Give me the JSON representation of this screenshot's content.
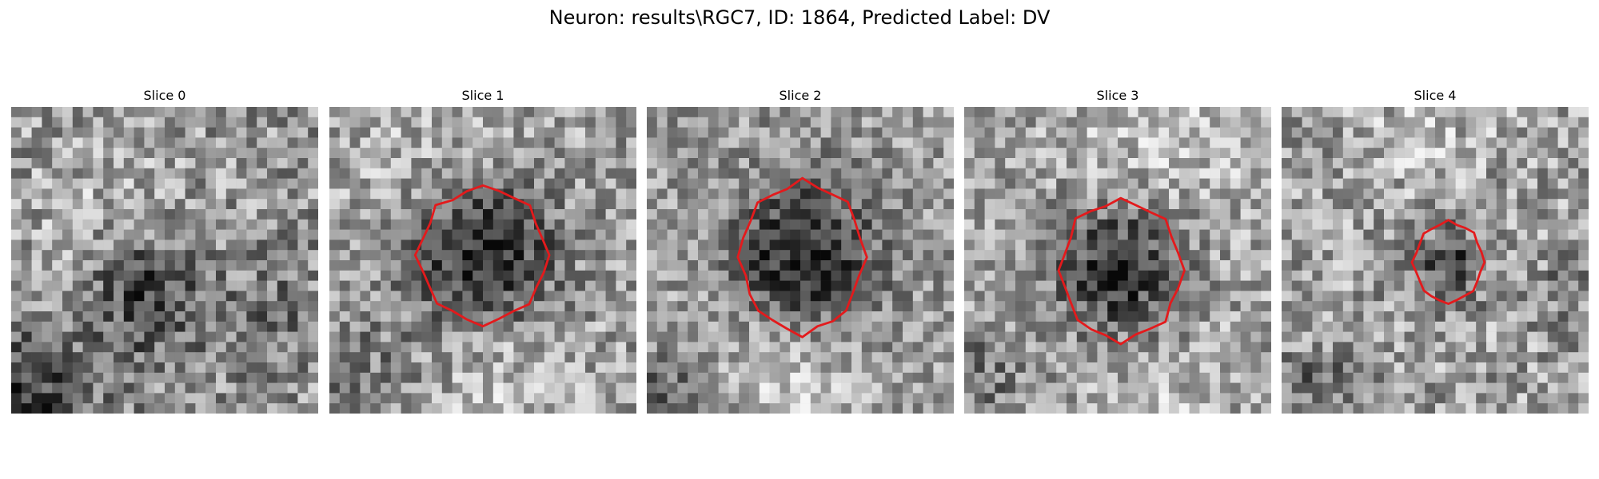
{
  "title": "Neuron: results\\RGC7, ID: 1864, Predicted Label: DV",
  "colors": {
    "contour": "#e31a1c",
    "background": "#ffffff",
    "text": "#000000"
  },
  "panels": [
    {
      "label": "Slice 0",
      "has_contour": false
    },
    {
      "label": "Slice 1",
      "has_contour": true
    },
    {
      "label": "Slice 2",
      "has_contour": true
    },
    {
      "label": "Slice 3",
      "has_contour": true
    },
    {
      "label": "Slice 4",
      "has_contour": true
    }
  ]
}
